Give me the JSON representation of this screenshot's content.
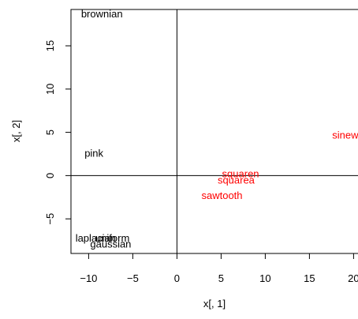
{
  "chart_data": {
    "type": "scatter",
    "title": "",
    "xlabel": "x[, 1]",
    "ylabel": "x[, 2]",
    "xlim": [
      -12,
      20.5
    ],
    "ylim": [
      -9,
      19.2
    ],
    "grid": false,
    "reference_lines": {
      "x": 0,
      "y": 0
    },
    "x_ticks": [
      -10,
      -5,
      0,
      5,
      10,
      15,
      20
    ],
    "x_tick_labels": [
      "−10",
      "−5",
      "0",
      "5",
      "10",
      "15",
      "20"
    ],
    "y_ticks": [
      -5,
      0,
      5,
      10,
      15
    ],
    "y_tick_labels": [
      "−5",
      "0",
      "5",
      "10",
      "15"
    ],
    "points": [
      {
        "label": "brownian",
        "x": -8.5,
        "y": 18.7,
        "color": "#000000"
      },
      {
        "label": "pink",
        "x": -9.4,
        "y": 2.6,
        "color": "#000000"
      },
      {
        "label": "laplacian",
        "x": -9.2,
        "y": -7.2,
        "color": "#000000"
      },
      {
        "label": "uniform",
        "x": -7.3,
        "y": -7.2,
        "color": "#000000"
      },
      {
        "label": "gaussian",
        "x": -7.5,
        "y": -7.9,
        "color": "#000000"
      },
      {
        "label": "sinewave",
        "x": 20,
        "y": 4.7,
        "color": "#ff0000"
      },
      {
        "label": "squaren",
        "x": 7.2,
        "y": 0.2,
        "color": "#ff0000"
      },
      {
        "label": "squarea",
        "x": 6.7,
        "y": -0.5,
        "color": "#ff0000"
      },
      {
        "label": "sawtooth",
        "x": 5.1,
        "y": -2.3,
        "color": "#ff0000"
      }
    ]
  }
}
